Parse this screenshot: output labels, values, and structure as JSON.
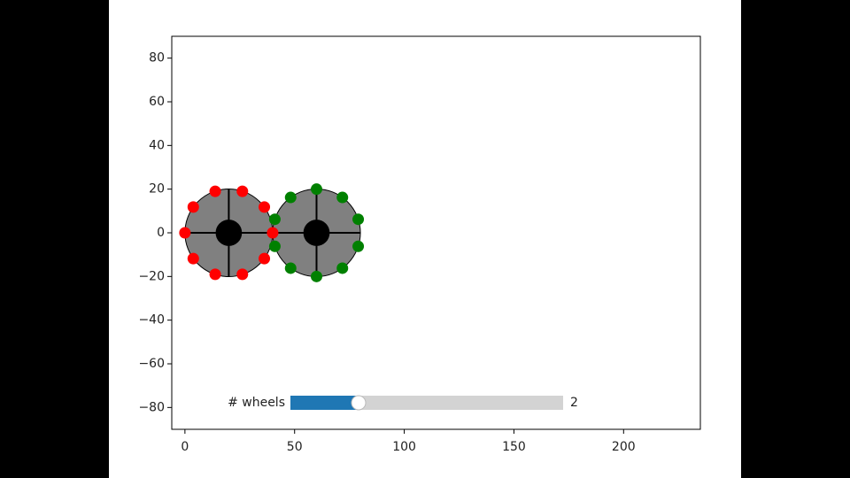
{
  "chart_data": {
    "type": "wheels",
    "xlim": [
      -6,
      235
    ],
    "ylim": [
      -90,
      90
    ],
    "xticks": [
      0,
      50,
      100,
      150,
      200
    ],
    "yticks": [
      {
        "value": -80,
        "label": "−80"
      },
      {
        "value": -60,
        "label": "−60"
      },
      {
        "value": -40,
        "label": "−40"
      },
      {
        "value": -20,
        "label": "−20"
      },
      0,
      20,
      40,
      60,
      80
    ],
    "wheel_color": "#808080",
    "hub_color": "#000000",
    "wheels": [
      {
        "cx": 20,
        "cy": 0,
        "r": 20,
        "hub_r": 6
      },
      {
        "cx": 60,
        "cy": 0,
        "r": 20,
        "hub_r": 6
      }
    ],
    "series": [
      {
        "color": "#ff0000",
        "x": [
          40,
          36.2,
          26.2,
          13.8,
          3.8,
          0,
          3.8,
          13.8,
          26.2,
          36.2
        ],
        "values": [
          0,
          11.8,
          19.0,
          19.0,
          11.8,
          0,
          -11.8,
          -19.0,
          -19.0,
          -11.8
        ]
      },
      {
        "color": "#008000",
        "x": [
          79.0,
          71.8,
          60,
          48.2,
          41.0,
          41.0,
          48.2,
          60,
          71.8,
          79.0
        ],
        "values": [
          6.2,
          16.2,
          20,
          16.2,
          6.2,
          -6.2,
          -16.2,
          -20,
          -16.2,
          -6.2
        ]
      }
    ],
    "slider": {
      "label": "# wheels",
      "min": 1,
      "max": 5,
      "value": 2,
      "color": "#1f77b4",
      "track_color": "#d3d3d3"
    }
  }
}
